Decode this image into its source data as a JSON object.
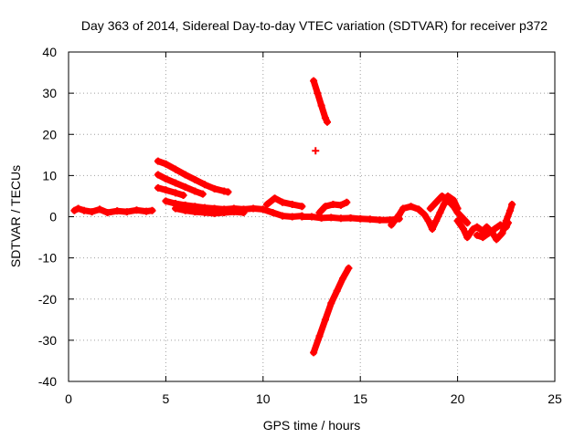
{
  "chart_data": {
    "type": "scatter",
    "title": "Day 363 of 2014, Sidereal Day-to-day VTEC variation (SDTVAR) for receiver p372",
    "xlabel": "GPS time / hours",
    "ylabel": "SDTVAR / TECUs",
    "xlim": [
      0,
      25
    ],
    "ylim": [
      -40,
      40
    ],
    "xticks": [
      "0",
      "5",
      "10",
      "15",
      "20",
      "25"
    ],
    "yticks": [
      "-40",
      "-30",
      "-20",
      "-10",
      "0",
      "10",
      "20",
      "30",
      "40"
    ],
    "grid": true,
    "color": "#ff0000",
    "series": [
      {
        "name": "p372 baseline early",
        "points": [
          [
            0.3,
            1.5
          ],
          [
            0.5,
            2.0
          ],
          [
            0.8,
            1.5
          ],
          [
            1.2,
            1.2
          ],
          [
            1.6,
            1.8
          ],
          [
            2.0,
            1.0
          ],
          [
            2.5,
            1.4
          ],
          [
            3.0,
            1.2
          ],
          [
            3.5,
            1.6
          ],
          [
            4.0,
            1.3
          ],
          [
            4.3,
            1.5
          ]
        ]
      },
      {
        "name": "p372 arc upper 5-8h",
        "points": [
          [
            4.6,
            13.5
          ],
          [
            5.0,
            12.8
          ],
          [
            5.5,
            11.5
          ],
          [
            6.0,
            10.2
          ],
          [
            6.5,
            9.0
          ],
          [
            7.0,
            7.8
          ],
          [
            7.5,
            6.8
          ],
          [
            8.0,
            6.2
          ],
          [
            8.2,
            6.0
          ]
        ]
      },
      {
        "name": "p372 arc middle 5-7h",
        "points": [
          [
            4.6,
            10.2
          ],
          [
            5.0,
            9.2
          ],
          [
            5.5,
            8.2
          ],
          [
            6.0,
            7.2
          ],
          [
            6.5,
            6.2
          ],
          [
            6.9,
            5.5
          ]
        ]
      },
      {
        "name": "p372 arc lower 5-6h",
        "points": [
          [
            4.6,
            7.0
          ],
          [
            5.0,
            6.5
          ],
          [
            5.5,
            5.8
          ],
          [
            5.9,
            5.2
          ]
        ]
      },
      {
        "name": "p372 baseline 5-12h",
        "points": [
          [
            5.0,
            3.8
          ],
          [
            5.5,
            3.2
          ],
          [
            6.0,
            2.8
          ],
          [
            6.5,
            2.5
          ],
          [
            7.0,
            2.2
          ],
          [
            7.5,
            2.0
          ],
          [
            8.0,
            1.8
          ],
          [
            8.5,
            2.0
          ],
          [
            9.0,
            1.8
          ],
          [
            9.5,
            2.0
          ],
          [
            10.0,
            1.8
          ],
          [
            10.5,
            1.0
          ],
          [
            11.0,
            0.2
          ],
          [
            11.5,
            0.0
          ],
          [
            12.0,
            0.2
          ]
        ]
      },
      {
        "name": "p372 baseline 5-9h lower",
        "points": [
          [
            5.5,
            2.0
          ],
          [
            6.0,
            1.5
          ],
          [
            6.5,
            1.2
          ],
          [
            7.0,
            1.0
          ],
          [
            7.5,
            0.8
          ],
          [
            8.0,
            1.0
          ],
          [
            8.5,
            1.2
          ],
          [
            9.0,
            1.0
          ]
        ]
      },
      {
        "name": "p372 bump 10.5h",
        "points": [
          [
            10.2,
            3.0
          ],
          [
            10.6,
            4.5
          ],
          [
            11.0,
            3.5
          ],
          [
            11.5,
            3.0
          ],
          [
            12.0,
            2.5
          ]
        ]
      },
      {
        "name": "p372 steep arc high 12.6h",
        "points": [
          [
            12.6,
            33.0
          ],
          [
            12.8,
            30.0
          ],
          [
            13.0,
            27.0
          ],
          [
            13.2,
            24.0
          ],
          [
            13.3,
            23.0
          ]
        ]
      },
      {
        "name": "p372 point 12.7h",
        "points": [
          [
            12.7,
            16.0
          ]
        ]
      },
      {
        "name": "p372 steep arc low 12.6-14.5h",
        "points": [
          [
            12.6,
            -33.0
          ],
          [
            12.9,
            -29.0
          ],
          [
            13.2,
            -25.0
          ],
          [
            13.5,
            -21.0
          ],
          [
            13.8,
            -18.0
          ],
          [
            14.1,
            -15.0
          ],
          [
            14.4,
            -12.5
          ]
        ]
      },
      {
        "name": "p372 baseline 12-17h",
        "points": [
          [
            12.0,
            0.0
          ],
          [
            12.5,
            0.0
          ],
          [
            13.0,
            -0.3
          ],
          [
            13.5,
            -0.2
          ],
          [
            14.0,
            -0.4
          ],
          [
            14.5,
            -0.3
          ],
          [
            15.0,
            -0.5
          ],
          [
            15.5,
            -0.6
          ],
          [
            16.0,
            -0.8
          ],
          [
            16.5,
            -0.8
          ],
          [
            17.0,
            -0.5
          ]
        ]
      },
      {
        "name": "p372 wiggle 13-14h",
        "points": [
          [
            12.9,
            1.0
          ],
          [
            13.2,
            2.5
          ],
          [
            13.6,
            3.0
          ],
          [
            14.0,
            2.8
          ],
          [
            14.3,
            3.5
          ]
        ]
      },
      {
        "name": "p372 segment 17-20h",
        "points": [
          [
            16.6,
            -2.0
          ],
          [
            17.0,
            0.5
          ],
          [
            17.2,
            2.0
          ],
          [
            17.6,
            2.5
          ],
          [
            18.0,
            1.8
          ],
          [
            18.3,
            0.5
          ],
          [
            18.5,
            -1.0
          ],
          [
            18.7,
            -3.0
          ],
          [
            18.9,
            -1.0
          ],
          [
            19.1,
            1.0
          ],
          [
            19.3,
            3.0
          ],
          [
            19.5,
            5.0
          ],
          [
            19.8,
            4.0
          ],
          [
            20.0,
            2.0
          ]
        ]
      },
      {
        "name": "p372 segment 19-20.5h",
        "points": [
          [
            18.6,
            2.0
          ],
          [
            18.9,
            3.5
          ],
          [
            19.2,
            5.0
          ],
          [
            19.5,
            4.0
          ],
          [
            19.8,
            2.5
          ],
          [
            20.0,
            1.0
          ],
          [
            20.2,
            0.0
          ],
          [
            20.5,
            -1.5
          ]
        ]
      },
      {
        "name": "p372 segment 20-22.8h",
        "points": [
          [
            20.0,
            -1.0
          ],
          [
            20.3,
            -3.0
          ],
          [
            20.5,
            -5.0
          ],
          [
            20.8,
            -3.0
          ],
          [
            21.0,
            -2.5
          ],
          [
            21.3,
            -3.5
          ],
          [
            21.5,
            -2.5
          ],
          [
            21.8,
            -4.0
          ],
          [
            22.0,
            -5.5
          ],
          [
            22.3,
            -4.0
          ],
          [
            22.5,
            -1.0
          ],
          [
            22.7,
            1.5
          ],
          [
            22.8,
            3.0
          ]
        ]
      },
      {
        "name": "p372 segment 21-22.6h",
        "points": [
          [
            21.0,
            -4.5
          ],
          [
            21.3,
            -5.0
          ],
          [
            21.6,
            -4.0
          ],
          [
            21.9,
            -3.0
          ],
          [
            22.2,
            -2.0
          ],
          [
            22.5,
            -2.5
          ],
          [
            22.6,
            -1.5
          ]
        ]
      }
    ]
  }
}
